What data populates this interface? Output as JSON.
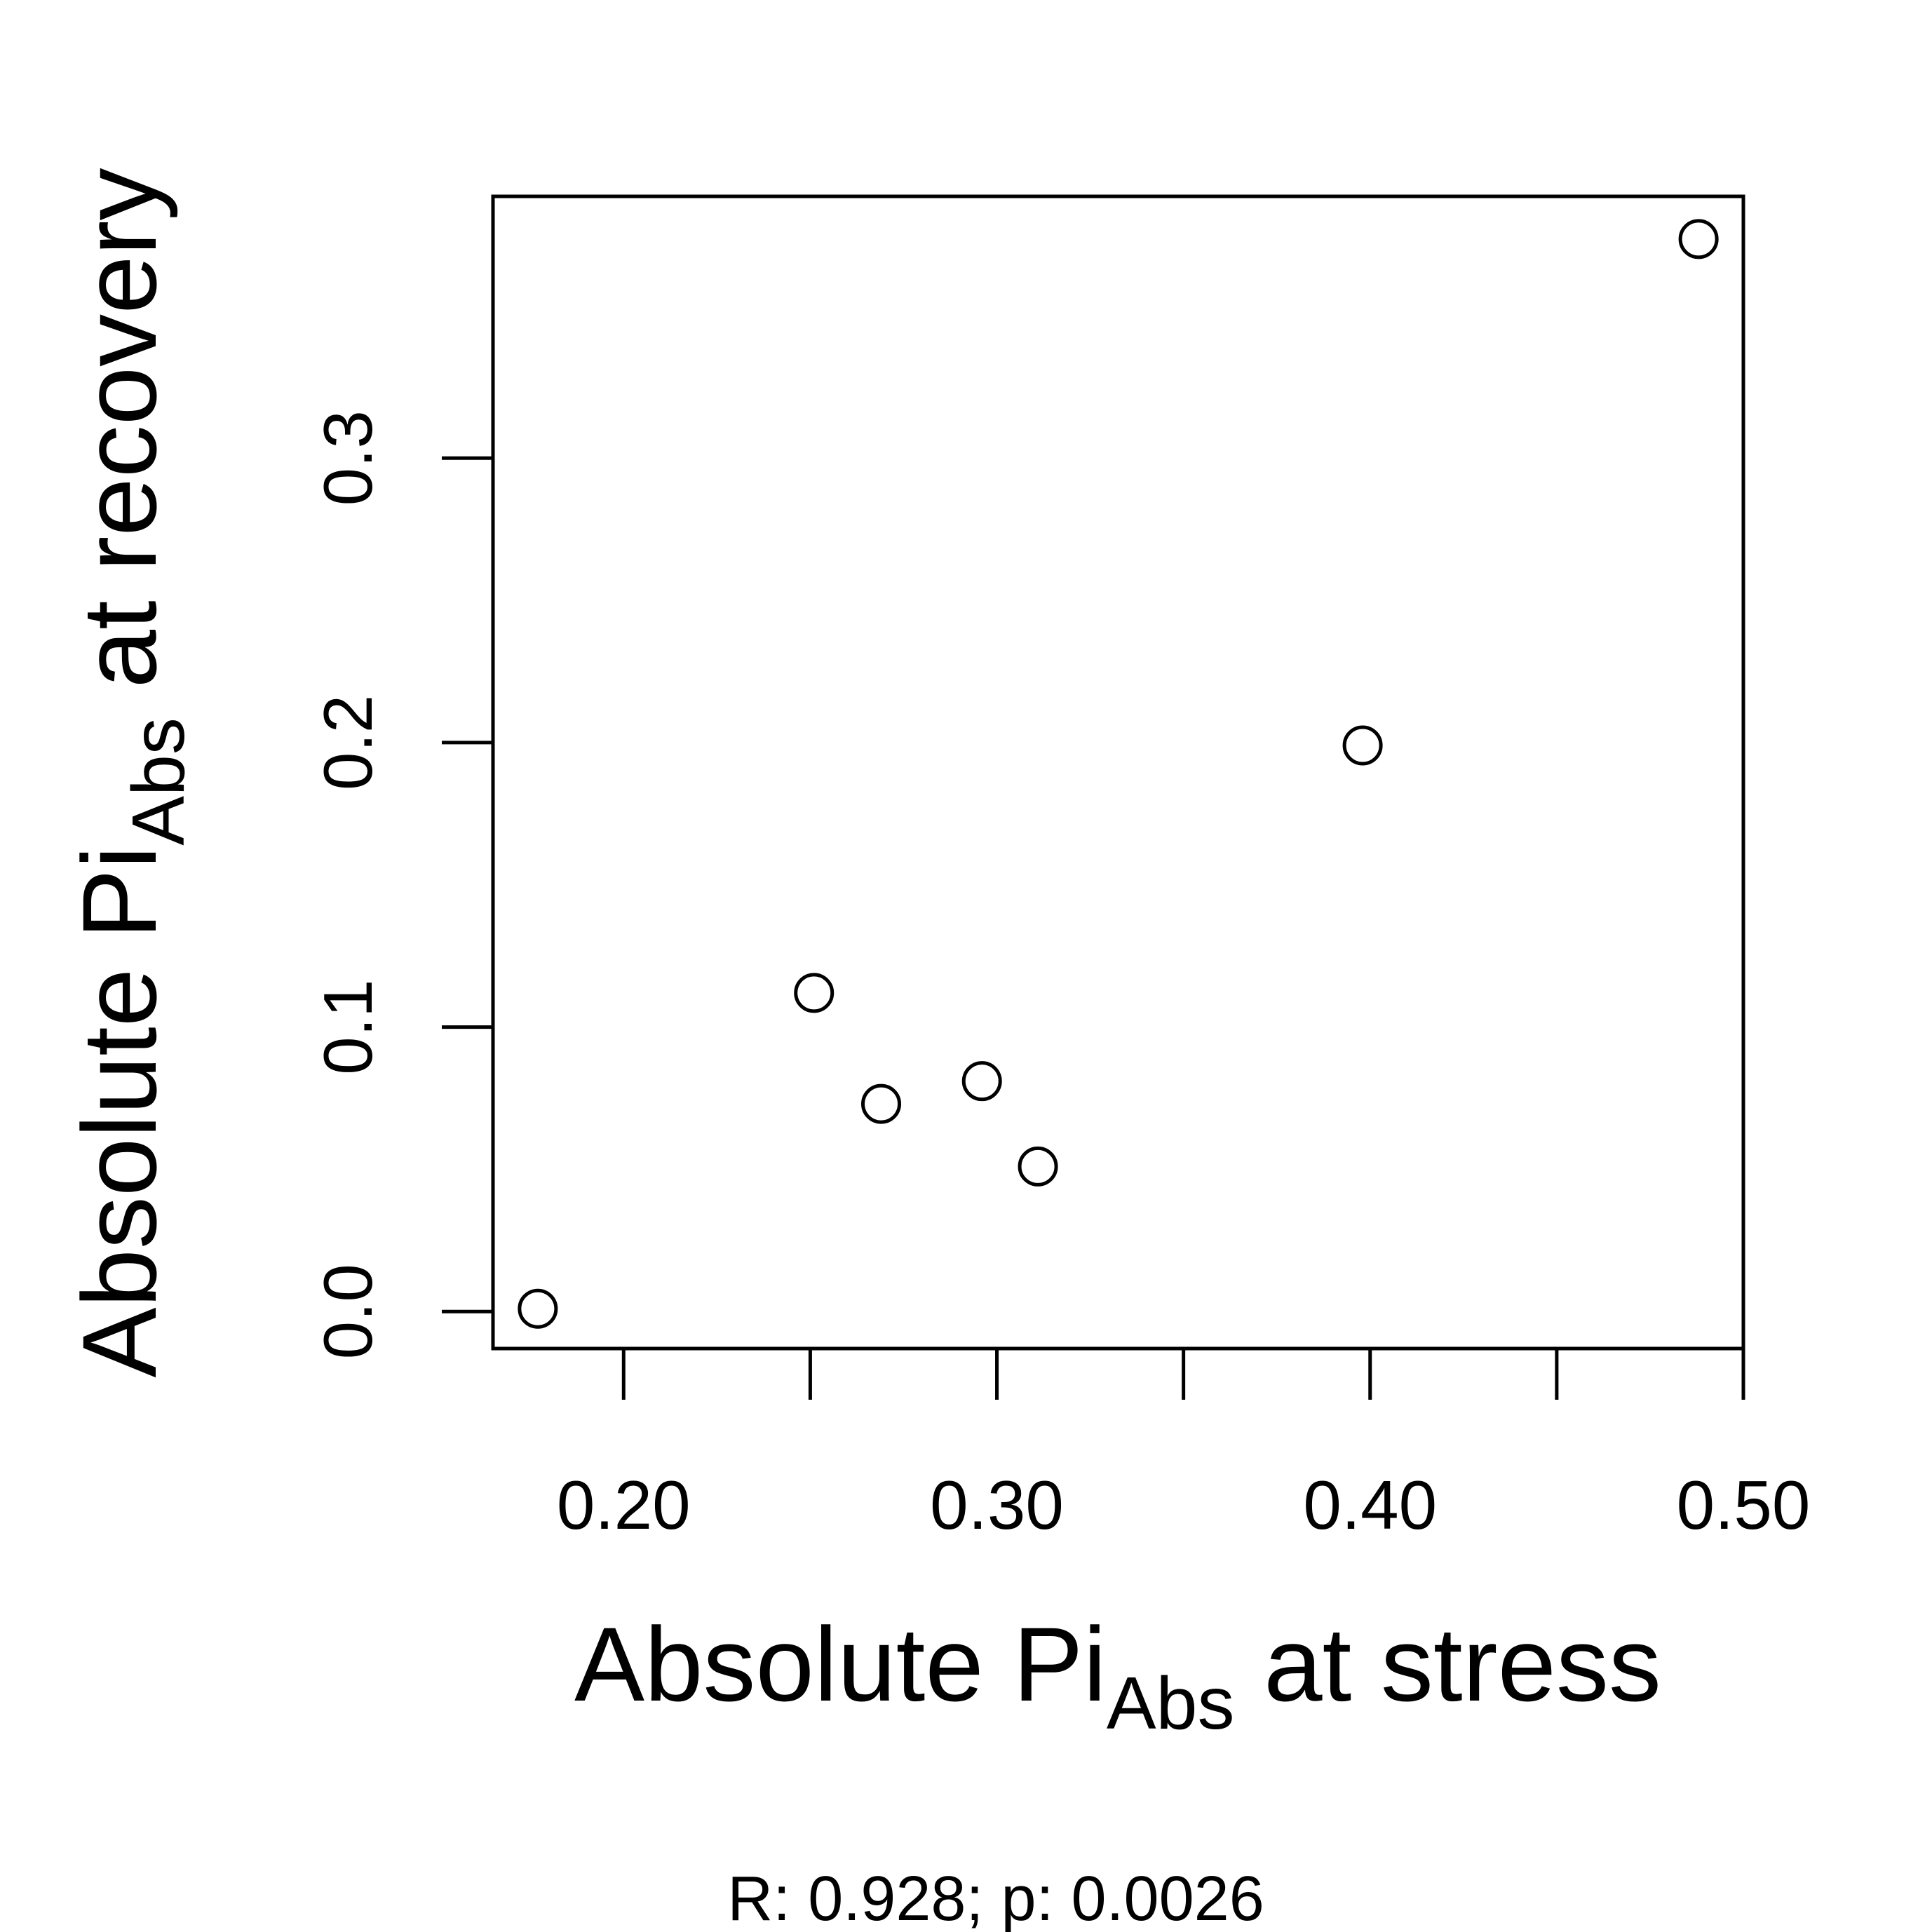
{
  "chart_data": {
    "type": "scatter",
    "x": [
      0.177,
      0.251,
      0.269,
      0.296,
      0.311,
      0.398,
      0.488
    ],
    "y": [
      0.001,
      0.112,
      0.073,
      0.081,
      0.051,
      0.199,
      0.377
    ],
    "xlim": [
      0.165,
      0.5
    ],
    "ylim": [
      -0.013,
      0.392
    ],
    "x_ticks": [
      0.2,
      0.25,
      0.3,
      0.35,
      0.4,
      0.45,
      0.5
    ],
    "x_tick_labels": [
      "0.20",
      "",
      "0.30",
      "",
      "0.40",
      "",
      "0.50"
    ],
    "y_ticks": [
      0.0,
      0.1,
      0.2,
      0.3
    ],
    "y_tick_labels": [
      "0.0",
      "0.1",
      "0.2",
      "0.3"
    ],
    "xlabel": {
      "main": "Absolute Pi",
      "sub": "Abs",
      "tail": " at stress"
    },
    "ylabel": {
      "main": "Absolute Pi",
      "sub": "Abs",
      "tail": " at recovery"
    },
    "annotation": "R: 0.928; p: 0.0026",
    "marker": "open-circle",
    "grid": false,
    "legend": "none",
    "colors": {
      "ink": "#000000",
      "background": "#ffffff"
    }
  }
}
